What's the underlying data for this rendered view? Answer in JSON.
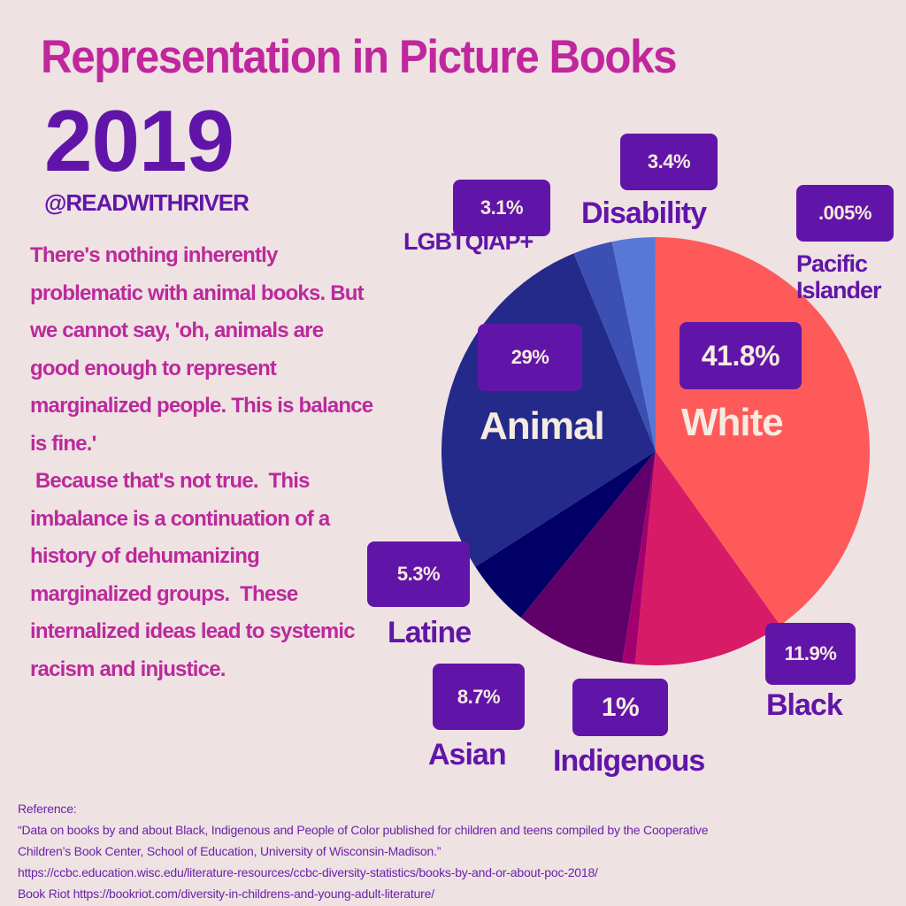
{
  "header": {
    "title": "Representation in Picture Books",
    "year": "2019",
    "handle": "@READWITHRIVER"
  },
  "body": {
    "paragraphs": [
      "There's nothing inherently problematic with animal books. But we cannot say, 'oh, animals are good enough to represent marginalized people. This is balance is fine.'",
      " Because that's not true.  This imbalance is a continuation of a history of dehumanizing marginalized groups.  These internalized ideas lead to systemic racism and injustice."
    ]
  },
  "references": {
    "heading": "Reference:",
    "lines": [
      "“Data on books by and about Black, Indigenous and People of Color published for children and teens compiled by the Cooperative",
      "Children’s Book Center, School of Education, University of Wisconsin-Madison.”",
      "https://ccbc.education.wisc.edu/literature-resources/ccbc-diversity-statistics/books-by-and-or-about-poc-2018/",
      "Book Riot https://bookriot.com/diversity-in-childrens-and-young-adult-literature/"
    ]
  },
  "colors": {
    "background": "#efe2e3",
    "title": "#c0279d",
    "accent": "#6115a8",
    "box_text": "#f6ebe0"
  },
  "chart_data": {
    "type": "pie",
    "title": "Representation in Picture Books",
    "start": "12 o'clock, clockwise",
    "slices": [
      {
        "name": "White",
        "value": 41.8,
        "label": "41.8%",
        "color": "#ff5a5a"
      },
      {
        "name": "Black",
        "value": 11.9,
        "label": "11.9%",
        "color": "#d81b66"
      },
      {
        "name": "Indigenous",
        "value": 1,
        "label": "1%",
        "color": "#a2006f"
      },
      {
        "name": "Asian",
        "value": 8.7,
        "label": "8.7%",
        "color": "#600169"
      },
      {
        "name": "Latine",
        "value": 5.3,
        "label": "5.3%",
        "color": "#000066"
      },
      {
        "name": "Animal",
        "value": 29,
        "label": "29%",
        "color": "#232a89"
      },
      {
        "name": "LGBTQIAP+",
        "value": 3.1,
        "label": "3.1%",
        "color": "#3c4fb2"
      },
      {
        "name": "Disability",
        "value": 3.4,
        "label": "3.4%",
        "color": "#5878d6"
      },
      {
        "name": "Pacific Islander",
        "value": 0.005,
        "label": ".005%",
        "color": "#ff5a5a"
      }
    ]
  }
}
